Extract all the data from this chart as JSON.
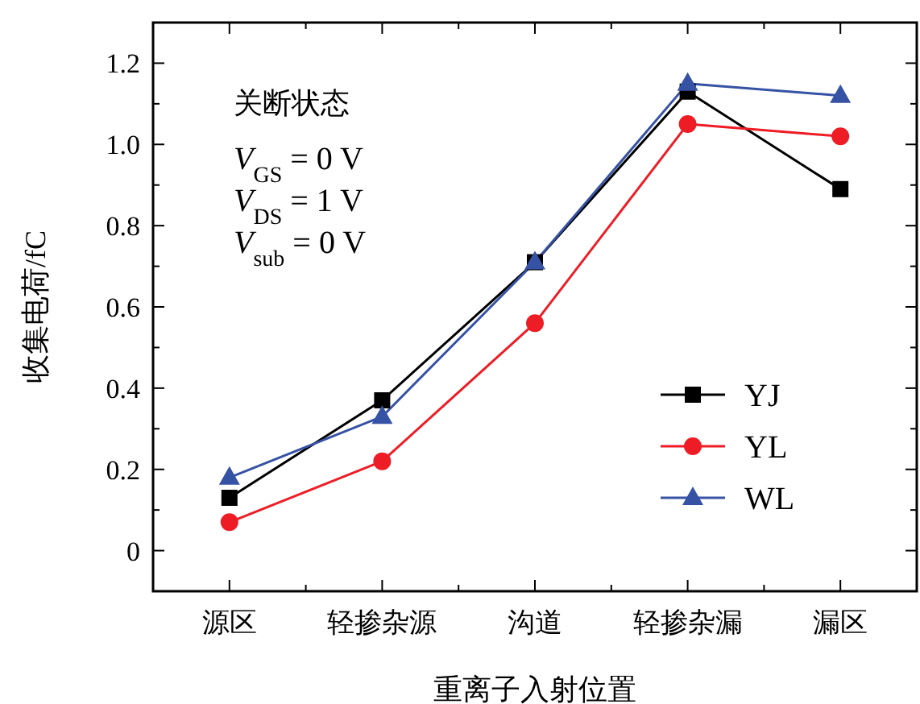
{
  "chart_data": {
    "type": "line",
    "xlabel": "重离子入射位置",
    "ylabel": "收集电荷/fC",
    "categories": [
      "源区",
      "轻掺杂源",
      "沟道",
      "轻掺杂漏",
      "漏区"
    ],
    "series": [
      {
        "name": "YJ",
        "color": "#000000",
        "marker": "square",
        "values": [
          0.13,
          0.37,
          0.71,
          1.13,
          0.89
        ]
      },
      {
        "name": "YL",
        "color": "#ee1c25",
        "marker": "circle",
        "values": [
          0.07,
          0.22,
          0.56,
          1.05,
          1.02
        ]
      },
      {
        "name": "WL",
        "color": "#3652a4",
        "marker": "triangle",
        "values": [
          0.18,
          0.33,
          0.71,
          1.15,
          1.12
        ]
      }
    ],
    "ylim": [
      -0.1,
      1.3
    ],
    "yticks": [
      0,
      {
        "value": 0.1,
        "label": null
      },
      0.2,
      {
        "value": 0.3,
        "label": null
      },
      0.4,
      {
        "value": 0.5,
        "label": null
      },
      0.6,
      {
        "value": 0.7,
        "label": null
      },
      0.8,
      {
        "value": 0.9,
        "label": null
      },
      {
        "value": 1.0,
        "label": "1.0"
      },
      {
        "value": 1.1,
        "label": null
      },
      1.2
    ],
    "annotations": [
      "关断状态",
      "*V*$_{GS}$ = 0 V",
      "*V*$_{DS}$ = 1 V",
      "*V*$_{sub}$ = 0 V"
    ],
    "legend": "right",
    "line_style": "solid",
    "grid": false
  }
}
